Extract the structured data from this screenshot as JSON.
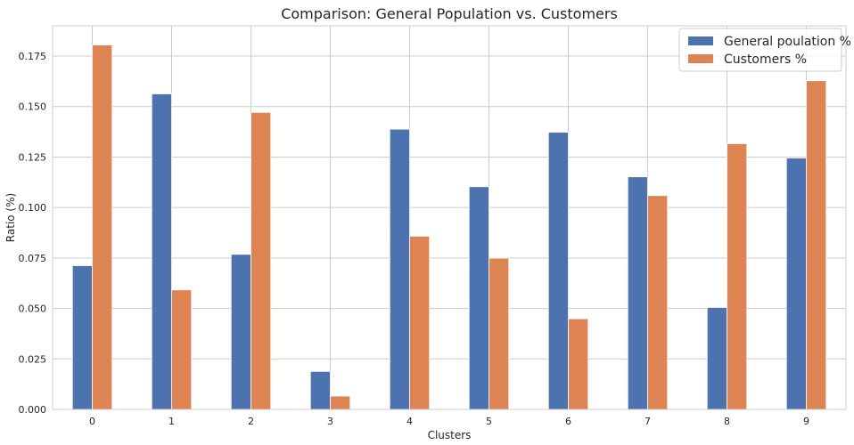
{
  "chart_data": {
    "type": "bar",
    "title": "Comparison: General Population vs. Customers",
    "xlabel": "Clusters",
    "ylabel": "Ratio (%)",
    "categories": [
      "0",
      "1",
      "2",
      "3",
      "4",
      "5",
      "6",
      "7",
      "8",
      "9"
    ],
    "series": [
      {
        "name": "General poulation %",
        "color": "#4c72b0",
        "values": [
          0.0712,
          0.1563,
          0.0768,
          0.0188,
          0.1388,
          0.1103,
          0.1373,
          0.1152,
          0.0505,
          0.1245
        ]
      },
      {
        "name": "Customers %",
        "color": "#dd8452",
        "values": [
          0.1805,
          0.0592,
          0.1471,
          0.0066,
          0.0858,
          0.0749,
          0.0449,
          0.1059,
          0.1316,
          0.1628
        ]
      }
    ],
    "ylim": [
      0,
      0.19
    ],
    "yticks": [
      "0.000",
      "0.025",
      "0.050",
      "0.075",
      "0.100",
      "0.125",
      "0.150",
      "0.175"
    ],
    "grid": true,
    "legend_position": "top-right"
  }
}
